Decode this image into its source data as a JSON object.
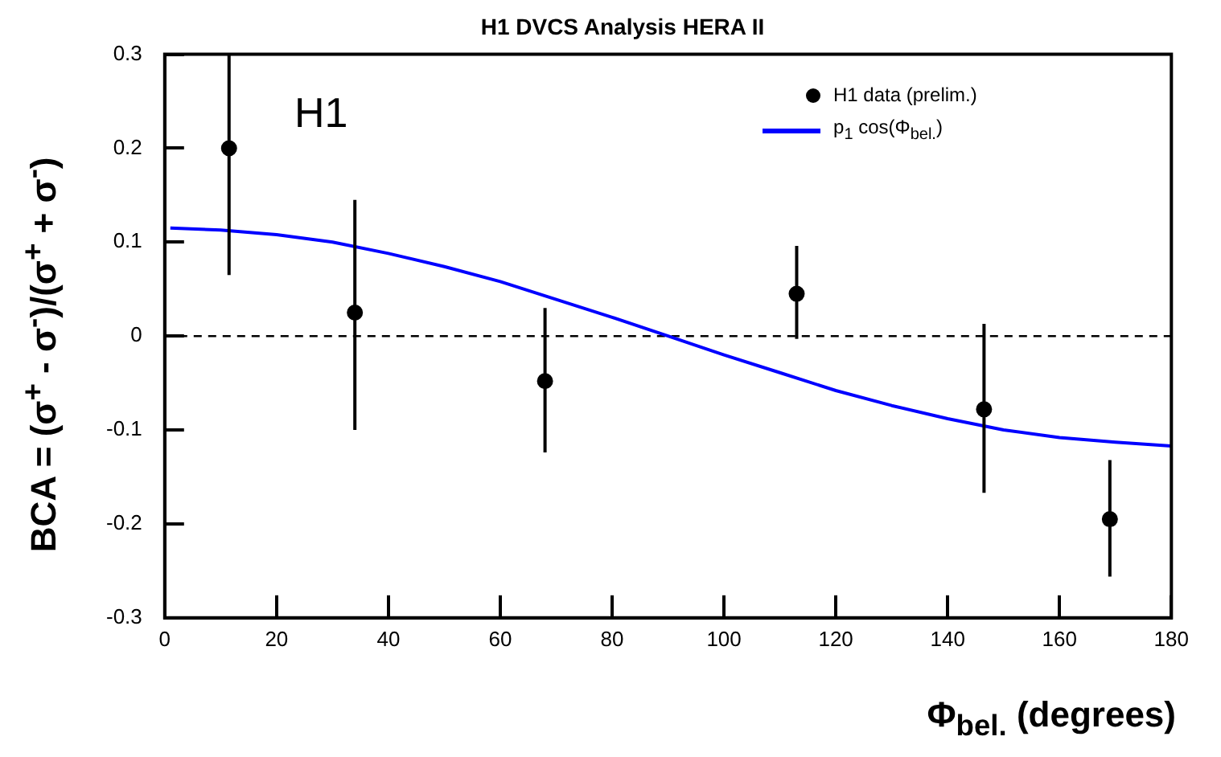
{
  "chart_data": {
    "type": "scatter",
    "title": "H1 DVCS Analysis HERA II",
    "xlabel": "Φ$_{bel.}$ (degrees)",
    "ylabel": "BCA = (σ$^{+}$ - σ$^{-}$)/(σ$^{+}$ + σ$^{-}$)",
    "annotations": [
      "H1"
    ],
    "xlim": [
      0,
      180
    ],
    "xticks": [
      0,
      20,
      40,
      60,
      80,
      100,
      120,
      140,
      160,
      180
    ],
    "ylim": [
      -0.3,
      0.3
    ],
    "yticks": [
      -0.3,
      -0.2,
      -0.1,
      0,
      0.1,
      0.2,
      0.3
    ],
    "grid": false,
    "legend": "top right",
    "marker": "circle",
    "ref_lines": [
      {
        "axis": "y",
        "value": 0,
        "color": "#000000",
        "line_style": "dashed"
      }
    ],
    "series": [
      {
        "name": "H1 data (prelim.)",
        "color": "#000000",
        "x": [
          11.5,
          34,
          68,
          113,
          146.5,
          169
        ],
        "values": [
          0.2,
          0.025,
          -0.048,
          0.045,
          -0.078,
          -0.195
        ],
        "errors": [
          [
            0.065,
            0.3
          ],
          [
            -0.1,
            0.145
          ],
          [
            -0.124,
            0.03
          ],
          [
            -0.003,
            0.096
          ],
          [
            -0.167,
            0.013
          ],
          [
            -0.256,
            -0.132
          ]
        ]
      },
      {
        "name": "p$_{1}$ cos(Φ$_{bel.}$)",
        "type": "line",
        "color": "#0000ff",
        "marker": "none",
        "x": [
          1,
          10,
          20,
          30,
          40,
          50,
          60,
          70,
          80,
          90,
          100,
          110,
          120,
          130,
          140,
          150,
          160,
          170,
          180
        ],
        "values": [
          0.115,
          0.113,
          0.108,
          0.1,
          0.088,
          0.074,
          0.058,
          0.039,
          0.02,
          0,
          -0.02,
          -0.039,
          -0.058,
          -0.074,
          -0.088,
          -0.1,
          -0.108,
          -0.113,
          -0.117
        ]
      }
    ]
  }
}
